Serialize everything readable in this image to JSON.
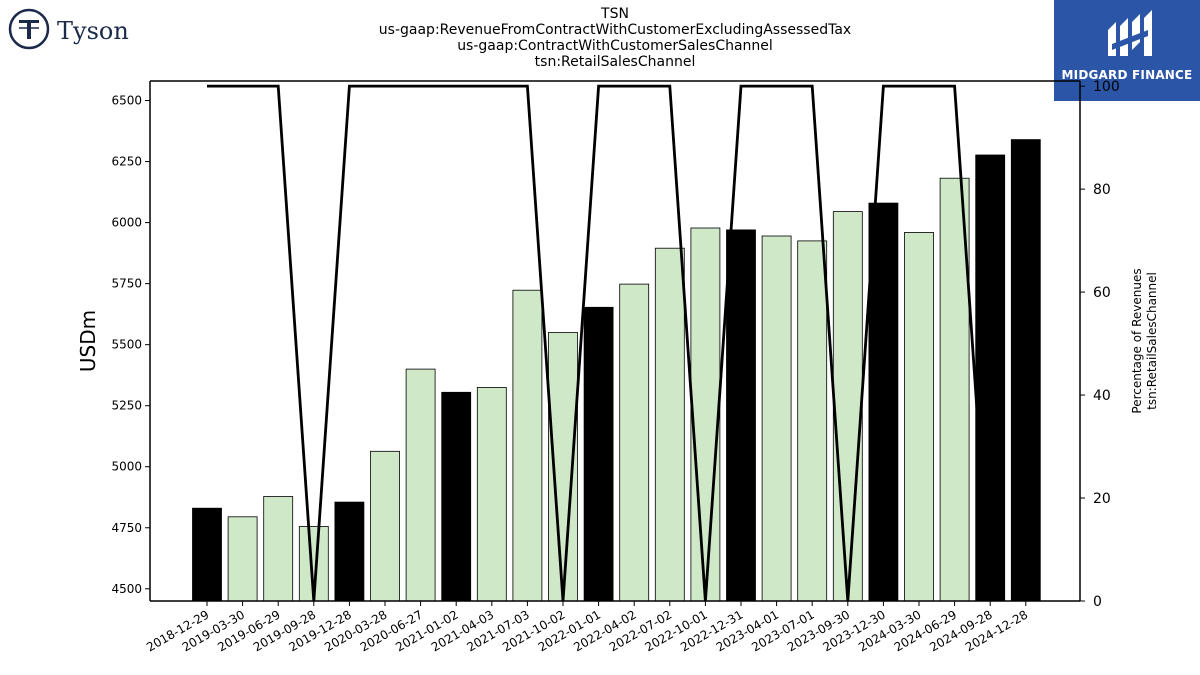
{
  "header": {
    "title_lines": [
      "TSN",
      "us-gaap:RevenueFromContractWithCustomerExcludingAssessedTax",
      "us-gaap:ContractWithCustomerSalesChannel",
      "tsn:RetailSalesChannel"
    ]
  },
  "logos": {
    "left": {
      "name": "Tyson",
      "icon": "tyson-logo-icon",
      "color": "#1b2a4a"
    },
    "right": {
      "name": "MIDGARD FINANCE",
      "icon": "midgard-logo-icon",
      "color": "#2b56a8"
    }
  },
  "chart_data": {
    "type": "bar",
    "ylabel": "USDm",
    "y2label_lines": [
      "Percentage of Revenues",
      "tsn:RetailSalesChannel"
    ],
    "ylim": [
      4450,
      6580
    ],
    "y2lim": [
      0,
      101
    ],
    "yticks": [
      4500,
      4750,
      5000,
      5250,
      5500,
      5750,
      6000,
      6250,
      6500
    ],
    "y2ticks": [
      0,
      20,
      40,
      60,
      80,
      100
    ],
    "grid": false,
    "colors": {
      "light": "#cfe8c8",
      "dark": "#000000"
    },
    "categories": [
      "2018-12-29",
      "2019-03-30",
      "2019-06-29",
      "2019-09-28",
      "2019-12-28",
      "2020-03-28",
      "2020-06-27",
      "2021-01-02",
      "2021-04-03",
      "2021-07-03",
      "2021-10-02",
      "2022-01-01",
      "2022-04-02",
      "2022-07-02",
      "2022-10-01",
      "2022-12-31",
      "2023-04-01",
      "2023-07-01",
      "2023-09-30",
      "2023-12-30",
      "2024-03-30",
      "2024-06-29",
      "2024-09-28",
      "2024-12-28"
    ],
    "series": [
      {
        "values": [
          4830,
          4795,
          4878,
          4755,
          4855,
          5063,
          5400,
          5305,
          5325,
          5723,
          5550,
          5653,
          5748,
          5895,
          5978,
          5970,
          5945,
          5925,
          6045,
          6080,
          5960,
          6182,
          6277,
          6340
        ],
        "dark": [
          true,
          false,
          false,
          false,
          true,
          false,
          false,
          true,
          false,
          false,
          false,
          true,
          false,
          false,
          false,
          true,
          false,
          false,
          false,
          true,
          false,
          false,
          true,
          true
        ]
      }
    ],
    "line": {
      "values": [
        100,
        100,
        100,
        0,
        100,
        100,
        100,
        100,
        100,
        100,
        0,
        100,
        100,
        100,
        0,
        100,
        100,
        100,
        0,
        100,
        100,
        100,
        0,
        null
      ]
    }
  }
}
